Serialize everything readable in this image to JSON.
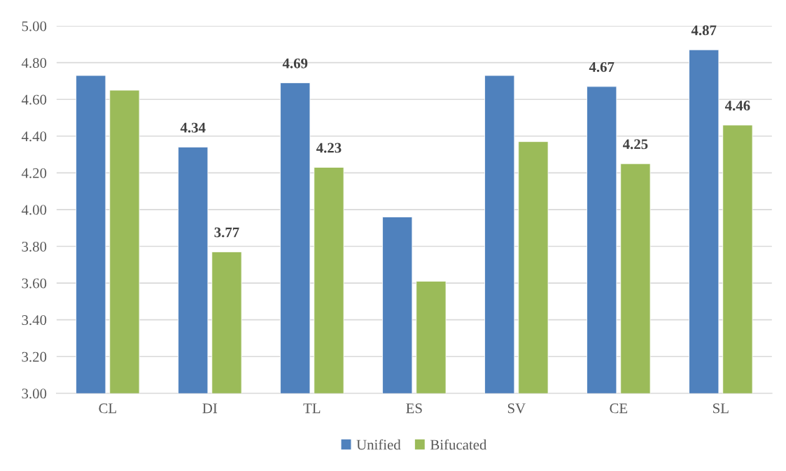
{
  "chart_data": {
    "type": "bar",
    "categories": [
      "CL",
      "DI",
      "TL",
      "ES",
      "SV",
      "CE",
      "SL"
    ],
    "series": [
      {
        "name": "Unified",
        "color": "#4f81bd",
        "values": [
          4.73,
          4.34,
          4.69,
          3.96,
          4.73,
          4.67,
          4.87
        ],
        "value_labels": [
          null,
          "4.34",
          "4.69",
          null,
          null,
          "4.67",
          "4.87"
        ]
      },
      {
        "name": "Bifucated",
        "color": "#9bbb59",
        "values": [
          4.65,
          3.77,
          4.23,
          3.61,
          4.37,
          4.25,
          4.46
        ],
        "value_labels": [
          null,
          "3.77",
          "4.23",
          null,
          null,
          "4.25",
          "4.46"
        ]
      }
    ],
    "ylim": [
      3.0,
      5.0
    ],
    "yticks": [
      {
        "value": 3.0,
        "label": "3.00"
      },
      {
        "value": 3.2,
        "label": "3.20"
      },
      {
        "value": 3.4,
        "label": "3.40"
      },
      {
        "value": 3.6,
        "label": "3.60"
      },
      {
        "value": 3.8,
        "label": "3.80"
      },
      {
        "value": 4.0,
        "label": "4.00"
      },
      {
        "value": 4.2,
        "label": "4.20"
      },
      {
        "value": 4.4,
        "label": "4.40"
      },
      {
        "value": 4.6,
        "label": "4.60"
      },
      {
        "value": 4.8,
        "label": "4.80"
      },
      {
        "value": 5.0,
        "label": "5.00"
      }
    ],
    "grid": "y",
    "legend": "bottom"
  }
}
